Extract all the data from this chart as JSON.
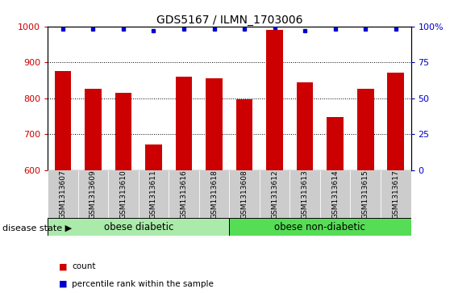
{
  "title": "GDS5167 / ILMN_1703006",
  "samples": [
    "GSM1313607",
    "GSM1313609",
    "GSM1313610",
    "GSM1313611",
    "GSM1313616",
    "GSM1313618",
    "GSM1313608",
    "GSM1313612",
    "GSM1313613",
    "GSM1313614",
    "GSM1313615",
    "GSM1313617"
  ],
  "counts": [
    875,
    825,
    815,
    670,
    860,
    855,
    797,
    990,
    843,
    748,
    825,
    872
  ],
  "percentiles": [
    98,
    98,
    98,
    97,
    98,
    98,
    98,
    99,
    97,
    98,
    98,
    98
  ],
  "ylim_left": [
    600,
    1000
  ],
  "ylim_right": [
    0,
    100
  ],
  "yticks_left": [
    600,
    700,
    800,
    900,
    1000
  ],
  "yticks_right": [
    0,
    25,
    50,
    75,
    100
  ],
  "bar_color": "#cc0000",
  "dot_color": "#0000cc",
  "group1_label": "obese diabetic",
  "group2_label": "obese non-diabetic",
  "group1_count": 6,
  "group2_count": 6,
  "group_color1": "#aaeaaa",
  "group_color2": "#55dd55",
  "disease_state_label": "disease state",
  "legend_count_label": "count",
  "legend_percentile_label": "percentile rank within the sample",
  "bar_width": 0.55
}
